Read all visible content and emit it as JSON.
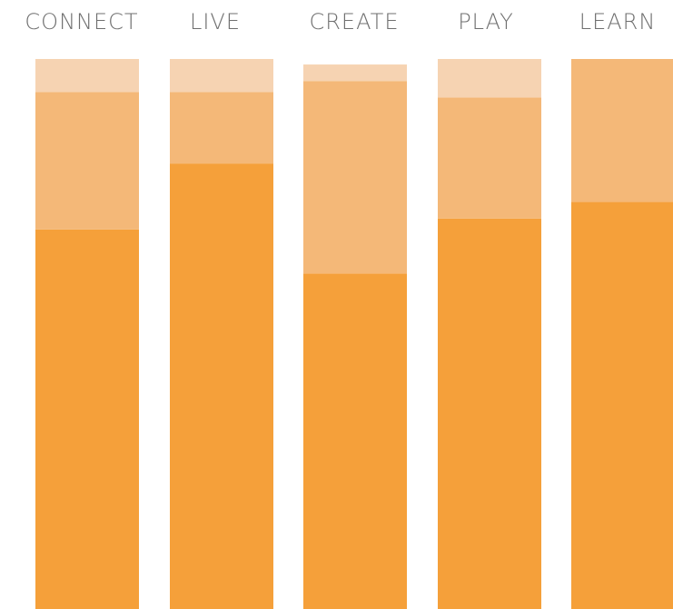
{
  "chart_data": {
    "type": "bar",
    "stacked": true,
    "categories": [
      "CONNECT",
      "LIVE",
      "CREATE",
      "PLAY",
      "LEARN"
    ],
    "series": [
      {
        "values": [
          69,
          81,
          61,
          71,
          74
        ]
      },
      {
        "values": [
          25,
          13,
          35,
          22,
          26
        ]
      },
      {
        "values": [
          6,
          6,
          3,
          7,
          0
        ]
      }
    ],
    "colors": [
      "#f5a03a",
      "#f4b878",
      "#f6d3b2"
    ],
    "ylim": [
      0,
      100
    ],
    "grid": false,
    "legend": "none"
  }
}
